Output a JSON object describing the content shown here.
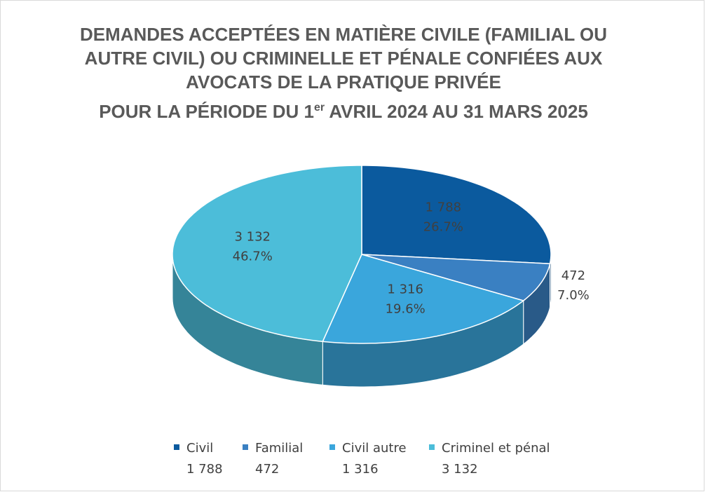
{
  "chart_data": {
    "type": "pie",
    "title": [
      "DEMANDES ACCEPTÉES EN MATIÈRE CIVILE (FAMILIAL OU",
      "AUTRE CIVIL) OU CRIMINELLE ET PÉNALE CONFIÉES AUX",
      "AVOCATS DE LA PRATIQUE PRIVÉE"
    ],
    "subtitle": [
      "POUR LA PÉRIODE DU 1",
      "er",
      " AVRIL 2024 AU 31 MARS 2025"
    ],
    "categories": [
      "Civil",
      "Familial",
      "Civil autre",
      "Criminel et pénal"
    ],
    "values": [
      1788,
      472,
      1316,
      3132
    ],
    "value_labels": [
      "1 788",
      "472",
      "1 316",
      "3 132"
    ],
    "percent_labels": [
      "26.7%",
      "7.0%",
      "19.6%",
      "46.7%"
    ],
    "colors": [
      "#0b5a9e",
      "#3a80c2",
      "#3aa6dc",
      "#4cbdd9"
    ],
    "legend": "bottom"
  }
}
